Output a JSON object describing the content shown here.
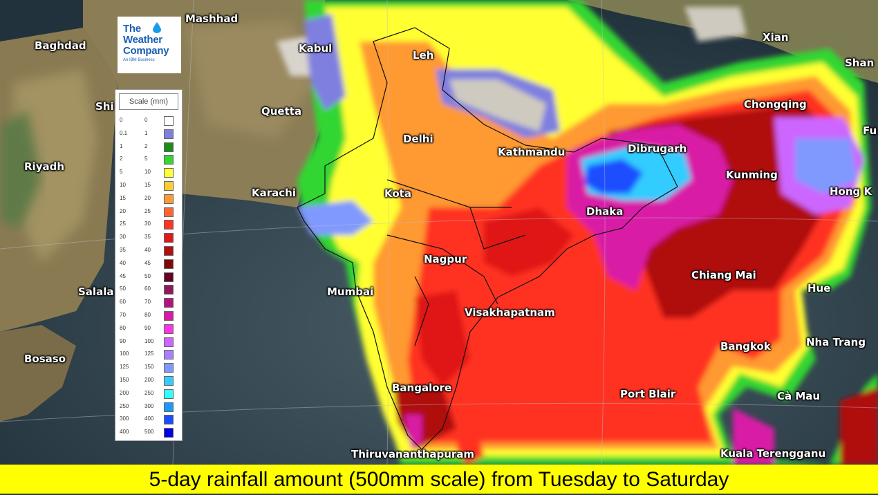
{
  "logo": {
    "line1": "The",
    "line2": "Weather",
    "line3": "Company",
    "subline": "An IBM Business"
  },
  "legend": {
    "title": "Scale (mm)",
    "rows": [
      {
        "lo": "0",
        "hi": "0",
        "color": "#ffffff"
      },
      {
        "lo": "0.1",
        "hi": "1",
        "color": "#7f7fe0"
      },
      {
        "lo": "1",
        "hi": "2",
        "color": "#1a8c1a"
      },
      {
        "lo": "2",
        "hi": "5",
        "color": "#33d633"
      },
      {
        "lo": "5",
        "hi": "10",
        "color": "#ffff33"
      },
      {
        "lo": "10",
        "hi": "15",
        "color": "#ffcc33"
      },
      {
        "lo": "15",
        "hi": "20",
        "color": "#ff9933"
      },
      {
        "lo": "20",
        "hi": "25",
        "color": "#ff6633"
      },
      {
        "lo": "25",
        "hi": "30",
        "color": "#ff3322"
      },
      {
        "lo": "30",
        "hi": "35",
        "color": "#e01818"
      },
      {
        "lo": "35",
        "hi": "40",
        "color": "#b01010"
      },
      {
        "lo": "40",
        "hi": "45",
        "color": "#800808"
      },
      {
        "lo": "45",
        "hi": "50",
        "color": "#660022"
      },
      {
        "lo": "50",
        "hi": "60",
        "color": "#8c1a5c"
      },
      {
        "lo": "60",
        "hi": "70",
        "color": "#b3147a"
      },
      {
        "lo": "70",
        "hi": "80",
        "color": "#d91aa6"
      },
      {
        "lo": "80",
        "hi": "90",
        "color": "#ff33e6"
      },
      {
        "lo": "90",
        "hi": "100",
        "color": "#cc66ff"
      },
      {
        "lo": "100",
        "hi": "125",
        "color": "#a680ff"
      },
      {
        "lo": "125",
        "hi": "150",
        "color": "#8099ff"
      },
      {
        "lo": "150",
        "hi": "200",
        "color": "#33ccff"
      },
      {
        "lo": "200",
        "hi": "250",
        "color": "#33ffff"
      },
      {
        "lo": "250",
        "hi": "300",
        "color": "#1a99ff"
      },
      {
        "lo": "300",
        "hi": "400",
        "color": "#1a4dff"
      },
      {
        "lo": "400",
        "hi": "500",
        "color": "#0000e6"
      }
    ]
  },
  "cities": {
    "mashhad": "Mashhad",
    "baghdad": "Baghdad",
    "kabul": "Kabul",
    "leh": "Leh",
    "xian": "Xian",
    "shan": "Shan",
    "shi": "Shi",
    "quetta": "Quetta",
    "chongqing": "Chongqing",
    "fu": "Fu",
    "delhi": "Delhi",
    "kathmandu": "Kathmandu",
    "dibrugarh": "Dibrugarh",
    "riyadh": "Riyadh",
    "kunming": "Kunming",
    "karachi": "Karachi",
    "kota": "Kota",
    "hongkong": "Hong K",
    "dhaka": "Dhaka",
    "nagpur": "Nagpur",
    "chiangmai": "Chiang Mai",
    "salala": "Salala",
    "mumbai": "Mumbai",
    "hue": "Hue",
    "visakhapatnam": "Visakhapatnam",
    "bangkok": "Bangkok",
    "nhatrang": "Nha Trang",
    "bosaso": "Bosaso",
    "bangalore": "Bangalore",
    "portblair": "Port Blair",
    "camau": "Cà Mau",
    "thiruvananthapuram": "Thiruvananthapuram",
    "kualaterengganu": "Kuala Terengganu"
  },
  "caption": "5-day rainfall amount (500mm scale) from Tuesday to Saturday"
}
